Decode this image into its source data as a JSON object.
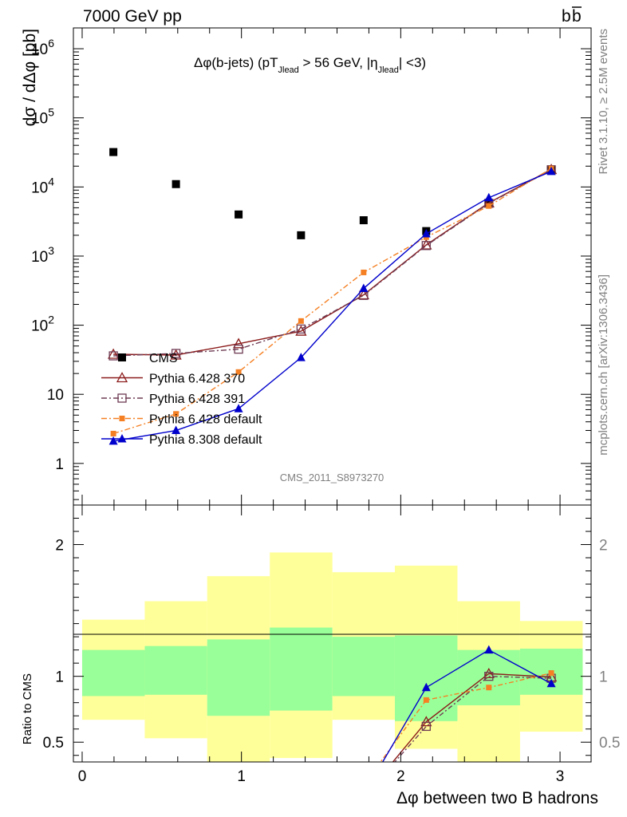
{
  "header": {
    "energy_label": "7000 GeV pp",
    "process_label_base": "b",
    "process_label_bar": "b"
  },
  "side_text": {
    "rivet": "Rivet 3.1.10, ≥ 2.5M events",
    "mcplots": "mcplots.cern.ch [arXiv:1306.3436]"
  },
  "analysis_id": "CMS_2011_S8973270",
  "chart_data": [
    {
      "type": "scatter",
      "panel": "main",
      "title": "Δφ(b-jets) (pT_Jlead > 56 GeV, |η_Jlead| <3)",
      "title_parts": {
        "prefix": "Δφ(b-jets) (pT",
        "sub1": "Jlead",
        "middle": " > 56 GeV, |η",
        "sub2": "Jlead",
        "suffix": "| <3)"
      },
      "ylabel": "dσ / dΔφ [pb]",
      "yscale": "log",
      "ylim": [
        0.25,
        2000000
      ],
      "xlim": [
        -0.055,
        3.195
      ],
      "y_tick_labels": [
        {
          "value": 1,
          "label": "1"
        },
        {
          "value": 10,
          "label": "10"
        },
        {
          "value": 100,
          "label": "10",
          "exp": "2"
        },
        {
          "value": 1000,
          "label": "10",
          "exp": "3"
        },
        {
          "value": 10000,
          "label": "10",
          "exp": "4"
        },
        {
          "value": 100000,
          "label": "10",
          "exp": "5"
        },
        {
          "value": 1000000,
          "label": "10",
          "exp": "6"
        }
      ],
      "legend_position": "bottom-left",
      "series": [
        {
          "name": "CMS",
          "color": "#000000",
          "marker": "filled-square",
          "line": "none",
          "x": [
            0.196,
            0.589,
            0.982,
            1.374,
            1.767,
            2.16,
            2.553,
            2.945
          ],
          "y": [
            32000,
            11000,
            4000,
            2000,
            3300,
            2300,
            5800,
            18000
          ]
        },
        {
          "name": "Pythia 6.428 370",
          "color": "#8b1a1a",
          "marker": "open-triangle",
          "line": "solid",
          "x": [
            0.196,
            0.589,
            0.982,
            1.374,
            1.767,
            2.16,
            2.553,
            2.945
          ],
          "y": [
            38,
            37,
            54,
            82,
            275,
            1450,
            5900,
            17900
          ]
        },
        {
          "name": "Pythia 6.428 391",
          "color": "#6e3b53",
          "marker": "open-square",
          "line": "dash-dot",
          "x": [
            0.196,
            0.589,
            0.982,
            1.374,
            1.767,
            2.16,
            2.553,
            2.945
          ],
          "y": [
            36,
            39,
            45,
            88,
            270,
            1420,
            5800,
            17700
          ]
        },
        {
          "name": "Pythia 6.428 default",
          "color": "#f58024",
          "marker": "filled-small-square",
          "line": "dash-dot",
          "x": [
            0.196,
            0.589,
            0.982,
            1.374,
            1.767,
            2.16,
            2.553,
            2.945
          ],
          "y": [
            2.7,
            5.2,
            21,
            115,
            580,
            1880,
            5300,
            18500
          ]
        },
        {
          "name": "Pythia 8.308 default",
          "color": "#0000cc",
          "marker": "filled-triangle",
          "line": "solid",
          "x": [
            0.196,
            0.589,
            0.982,
            1.374,
            1.767,
            2.16,
            2.553,
            2.945
          ],
          "y": [
            2.1,
            3.0,
            6.2,
            34,
            340,
            2100,
            7000,
            16800
          ]
        }
      ]
    },
    {
      "type": "line",
      "panel": "ratio",
      "ylabel": "Ratio to CMS",
      "xlabel": "Δφ between two B hadrons",
      "ylim": [
        0.35,
        2.3
      ],
      "xlim": [
        -0.055,
        3.195
      ],
      "x_ticks": [
        0,
        1,
        2,
        3
      ],
      "y_ticks": [
        0.5,
        1,
        2
      ],
      "reference_line": 1,
      "bin_edges": [
        0,
        0.393,
        0.785,
        1.178,
        1.571,
        1.963,
        2.356,
        2.749,
        3.142
      ],
      "band_1sigma": [
        [
          0.85,
          1.2
        ],
        [
          0.86,
          1.23
        ],
        [
          0.7,
          1.28
        ],
        [
          0.74,
          1.37
        ],
        [
          0.85,
          1.3
        ],
        [
          0.66,
          1.31
        ],
        [
          0.78,
          1.2
        ],
        [
          0.86,
          1.21
        ]
      ],
      "band_2sigma": [
        [
          0.67,
          1.43
        ],
        [
          0.53,
          1.57
        ],
        [
          0.3,
          1.76
        ],
        [
          0.38,
          1.94
        ],
        [
          0.67,
          1.79
        ],
        [
          0.45,
          1.84
        ],
        [
          0.3,
          1.57
        ],
        [
          0.58,
          1.42
        ]
      ],
      "colors": {
        "band_1sigma": "#99ff99",
        "band_2sigma": "#ffff99"
      },
      "series": [
        {
          "name": "Pythia 6.428 370",
          "color": "#8b1a1a",
          "marker": "open-triangle",
          "line": "solid",
          "x": [
            1.767,
            2.16,
            2.553,
            2.945
          ],
          "y": [
            0.083,
            0.655,
            1.02,
            0.995
          ]
        },
        {
          "name": "Pythia 6.428 391",
          "color": "#6e3b53",
          "marker": "open-square",
          "line": "dash-dot",
          "x": [
            1.767,
            2.16,
            2.553,
            2.945
          ],
          "y": [
            0.082,
            0.62,
            1.0,
            0.985
          ]
        },
        {
          "name": "Pythia 6.428 default",
          "color": "#f58024",
          "marker": "filled-small-square",
          "line": "dash-dot",
          "x": [
            1.767,
            2.16,
            2.553,
            2.945
          ],
          "y": [
            0.176,
            0.82,
            0.915,
            1.025
          ]
        },
        {
          "name": "Pythia 8.308 default",
          "color": "#0000cc",
          "marker": "filled-triangle",
          "line": "solid",
          "x": [
            1.767,
            2.16,
            2.553,
            2.945
          ],
          "y": [
            0.103,
            0.915,
            1.2,
            0.945
          ]
        }
      ]
    }
  ]
}
